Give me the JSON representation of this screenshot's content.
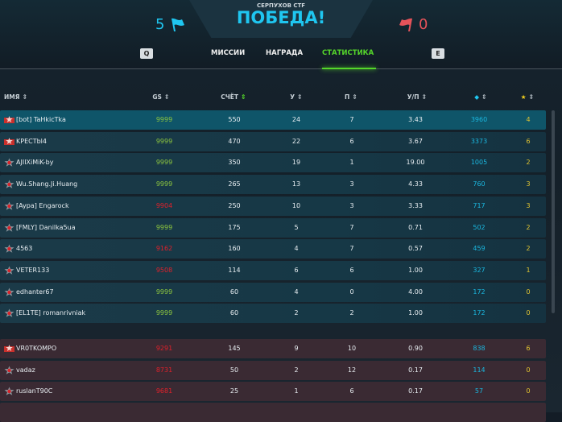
{
  "header": {
    "subtitle": "СЕРПУХОВ CTF",
    "title": "ПОБЕДА!",
    "score_left": "5",
    "score_right": "0"
  },
  "colors": {
    "blue_team": "#1fc6f0",
    "red_team": "#e6535a",
    "active_tab": "#55d62a",
    "crystals": "#1ab8e0",
    "stars": "#e2c531"
  },
  "tabs": {
    "prev_key": "Q",
    "next_key": "E",
    "items": [
      {
        "label": "МИССИИ"
      },
      {
        "label": "НАГРАДА"
      },
      {
        "label": "СТАТИСТИКА",
        "active": true
      }
    ]
  },
  "columns": {
    "name": "ИМЯ",
    "gs": "GS",
    "score": "СЧЁТ",
    "kills": "У",
    "deaths": "П",
    "kd": "У/П",
    "crystals_icon": "diamond-icon",
    "stars_icon": "star-icon"
  },
  "blue_rows": [
    {
      "name": "[bot] TaHkicTka",
      "gs": "9999",
      "score": "550",
      "k": "24",
      "d": "7",
      "kd": "3.43",
      "cr": "3960",
      "st": "4"
    },
    {
      "name": "KPECTbl4",
      "gs": "9999",
      "score": "470",
      "k": "22",
      "d": "6",
      "kd": "3.67",
      "cr": "3373",
      "st": "6"
    },
    {
      "name": "AJIIXiMiK-by",
      "gs": "9999",
      "score": "350",
      "k": "19",
      "d": "1",
      "kd": "19.00",
      "cr": "1005",
      "st": "2"
    },
    {
      "name": "Wu.Shang.Ji.Huang",
      "gs": "9999",
      "score": "265",
      "k": "13",
      "d": "3",
      "kd": "4.33",
      "cr": "760",
      "st": "3"
    },
    {
      "name": "[Aypa] Engarock",
      "gs": "9904",
      "score": "250",
      "k": "10",
      "d": "3",
      "kd": "3.33",
      "cr": "717",
      "st": "3"
    },
    {
      "name": "[FMLY] Danilka5ua",
      "gs": "9999",
      "score": "175",
      "k": "5",
      "d": "7",
      "kd": "0.71",
      "cr": "502",
      "st": "2"
    },
    {
      "name": "4563",
      "gs": "9162",
      "score": "160",
      "k": "4",
      "d": "7",
      "kd": "0.57",
      "cr": "459",
      "st": "2"
    },
    {
      "name": "VETER133",
      "gs": "9508",
      "score": "114",
      "k": "6",
      "d": "6",
      "kd": "1.00",
      "cr": "327",
      "st": "1"
    },
    {
      "name": "edhanter67",
      "gs": "9999",
      "score": "60",
      "k": "4",
      "d": "0",
      "kd": "4.00",
      "cr": "172",
      "st": "0"
    },
    {
      "name": "[EL1TE] romanrivniak",
      "gs": "9999",
      "score": "60",
      "k": "2",
      "d": "2",
      "kd": "1.00",
      "cr": "172",
      "st": "0"
    }
  ],
  "red_rows": [
    {
      "name": "VR0TKOMPO",
      "gs": "9291",
      "score": "145",
      "k": "9",
      "d": "10",
      "kd": "0.90",
      "cr": "838",
      "st": "6"
    },
    {
      "name": "vadaz",
      "gs": "8731",
      "score": "50",
      "k": "2",
      "d": "12",
      "kd": "0.17",
      "cr": "114",
      "st": "0"
    },
    {
      "name": "ruslanT90C",
      "gs": "9681",
      "score": "25",
      "k": "1",
      "d": "6",
      "kd": "0.17",
      "cr": "57",
      "st": "0"
    }
  ]
}
